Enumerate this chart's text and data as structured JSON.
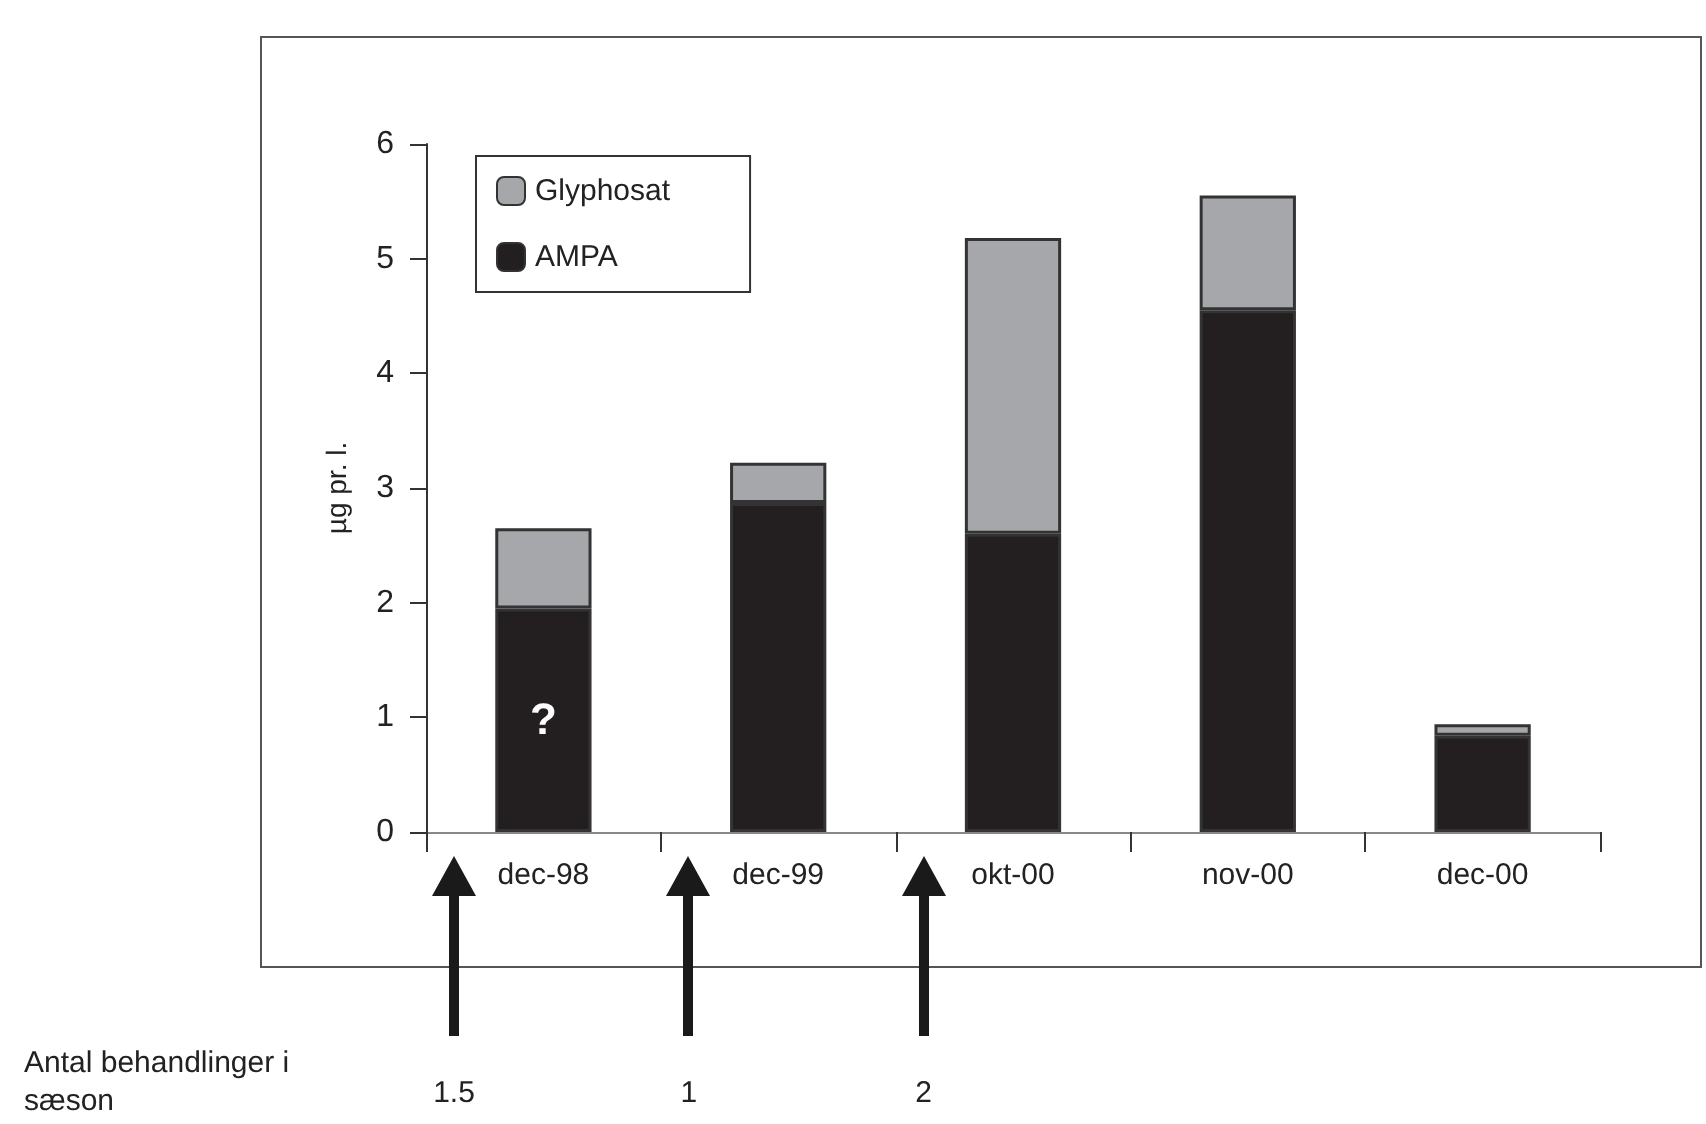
{
  "chart_data": {
    "type": "bar",
    "stacked": true,
    "ylabel": "µg pr. l.",
    "categories": [
      "dec-98",
      "dec-99",
      "okt-00",
      "nov-00",
      "dec-00"
    ],
    "series": [
      {
        "name": "AMPA",
        "color": "#231f20",
        "values": [
          1.95,
          2.87,
          2.6,
          4.55,
          0.84
        ]
      },
      {
        "name": "Glyphosat",
        "color": "#a6a7aa",
        "values": [
          0.7,
          0.35,
          2.58,
          1.0,
          0.1
        ]
      }
    ],
    "ylim": [
      0,
      6
    ],
    "yticks": [
      0,
      1,
      2,
      3,
      4,
      5,
      6
    ],
    "grid": false,
    "legend": "top left",
    "annotations": [
      "?",
      "Antal behandlinger i sæson",
      "1.5",
      "1",
      "2"
    ]
  }
}
